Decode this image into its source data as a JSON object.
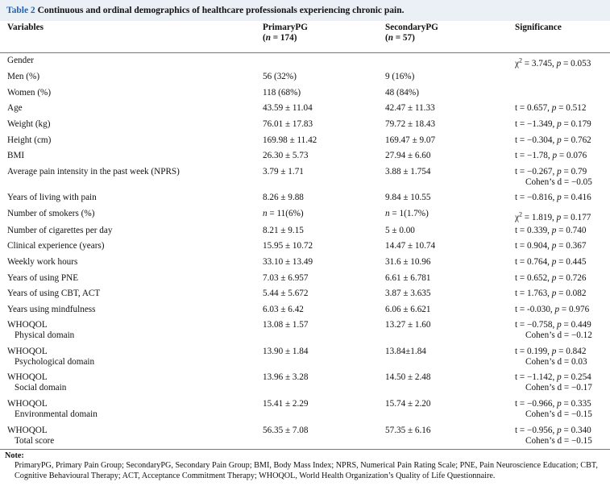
{
  "caption": {
    "label": "Table 2",
    "title": "Continuous and ordinal demographics of healthcare professionals experiencing chronic pain."
  },
  "columns": {
    "variables": "Variables",
    "primary": "PrimaryPG",
    "primary_n": "(n = 174)",
    "secondary": "SecondaryPG",
    "secondary_n": "(n = 57)",
    "significance": "Significance"
  },
  "rows": [
    {
      "variable": "Gender",
      "sub": "",
      "primary": "",
      "secondary": "",
      "sig": "χ2 = 3.745, p = 0.053",
      "sig2": ""
    },
    {
      "variable": "Men (%)",
      "sub": "",
      "primary": "56 (32%)",
      "secondary": "9 (16%)",
      "sig": "",
      "sig2": ""
    },
    {
      "variable": "Women (%)",
      "sub": "",
      "primary": "118 (68%)",
      "secondary": "48 (84%)",
      "sig": "",
      "sig2": ""
    },
    {
      "variable": "Age",
      "sub": "",
      "primary": "43.59 ± 11.04",
      "secondary": "42.47 ± 11.33",
      "sig": "t = 0.657, p = 0.512",
      "sig2": ""
    },
    {
      "variable": "Weight (kg)",
      "sub": "",
      "primary": "76.01 ± 17.83",
      "secondary": "79.72 ± 18.43",
      "sig": "t = −1.349, p = 0.179",
      "sig2": ""
    },
    {
      "variable": "Height (cm)",
      "sub": "",
      "primary": "169.98 ± 11.42",
      "secondary": "169.47 ± 9.07",
      "sig": "t = −0.304, p = 0.762",
      "sig2": ""
    },
    {
      "variable": "BMI",
      "sub": "",
      "primary": "26.30 ± 5.73",
      "secondary": "27.94 ± 6.60",
      "sig": "t = −1.78, p = 0.076",
      "sig2": ""
    },
    {
      "variable": "Average pain intensity in the past week (NPRS)",
      "sub": "",
      "primary": "3.79 ± 1.71",
      "secondary": "3.88 ± 1.754",
      "sig": "t = −0.267, p = 0.79",
      "sig2": "Cohen’s d = −0.05"
    },
    {
      "variable": "Years of living with pain",
      "sub": "",
      "primary": "8.26 ± 9.88",
      "secondary": "9.84 ± 10.55",
      "sig": "t = −0.816, p = 0.416",
      "sig2": ""
    },
    {
      "variable": "Number of smokers (%)",
      "sub": "",
      "primary": "n = 11(6%)",
      "secondary": "n = 1(1.7%)",
      "sig": "χ2 = 1.819, p = 0.177",
      "sig2": ""
    },
    {
      "variable": "Number of cigarettes per day",
      "sub": "",
      "primary": "8.21 ± 9.15",
      "secondary": "5 ± 0.00",
      "sig": "t = 0.339, p = 0.740",
      "sig2": ""
    },
    {
      "variable": "Clinical experience (years)",
      "sub": "",
      "primary": "15.95 ± 10.72",
      "secondary": "14.47 ± 10.74",
      "sig": "t = 0.904, p = 0.367",
      "sig2": ""
    },
    {
      "variable": "Weekly work hours",
      "sub": "",
      "primary": "33.10 ± 13.49",
      "secondary": "31.6 ± 10.96",
      "sig": "t = 0.764, p = 0.445",
      "sig2": ""
    },
    {
      "variable": "Years of using PNE",
      "sub": "",
      "primary": "7.03 ± 6.957",
      "secondary": "6.61 ± 6.781",
      "sig": "t = 0.652, p = 0.726",
      "sig2": ""
    },
    {
      "variable": "Years of using CBT, ACT",
      "sub": "",
      "primary": "5.44 ± 5.672",
      "secondary": "3.87 ± 3.635",
      "sig": "t = 1.763, p = 0.082",
      "sig2": ""
    },
    {
      "variable": "Years using mindfulness",
      "sub": "",
      "primary": "6.03 ± 6.42",
      "secondary": "6.06 ± 6.621",
      "sig": "t = -0.030, p = 0.976",
      "sig2": ""
    },
    {
      "variable": "WHOQOL",
      "sub": "Physical domain",
      "primary": "13.08 ± 1.57",
      "secondary": "13.27 ± 1.60",
      "sig": "t = −0.758, p = 0.449",
      "sig2": "Cohen’s d = −0.12"
    },
    {
      "variable": "WHOQOL",
      "sub": "Psychological domain",
      "primary": "13.90 ± 1.84",
      "secondary": "13.84±1.84",
      "sig": "t = 0.199, p = 0.842",
      "sig2": "Cohen’s d = 0.03"
    },
    {
      "variable": "WHOQOL",
      "sub": "Social domain",
      "primary": "13.96 ± 3.28",
      "secondary": "14.50 ± 2.48",
      "sig": "t = −1.142, p = 0.254",
      "sig2": "Cohen’s d = −0.17"
    },
    {
      "variable": "WHOQOL",
      "sub": "Environmental domain",
      "primary": "15.41 ± 2.29",
      "secondary": "15.74 ± 2.20",
      "sig": "t = −0.966, p = 0.335",
      "sig2": "Cohen’s d = −0.15"
    },
    {
      "variable": "WHOQOL",
      "sub": "Total score",
      "primary": "56.35 ± 7.08",
      "secondary": "57.35 ± 6.16",
      "sig": "t = −0.956, p = 0.340",
      "sig2": "Cohen’s d = −0.15"
    }
  ],
  "notes": {
    "label": "Note:",
    "text": "PrimaryPG, Primary Pain Group; SecondaryPG, Secondary Pain Group; BMI, Body Mass Index; NPRS, Numerical Pain Rating Scale; PNE, Pain Neuroscience Education; CBT, Cognitive Behavioural Therapy; ACT, Acceptance Commitment Therapy; WHOQOL, World Health Organization’s Quality of Life Questionnaire."
  }
}
